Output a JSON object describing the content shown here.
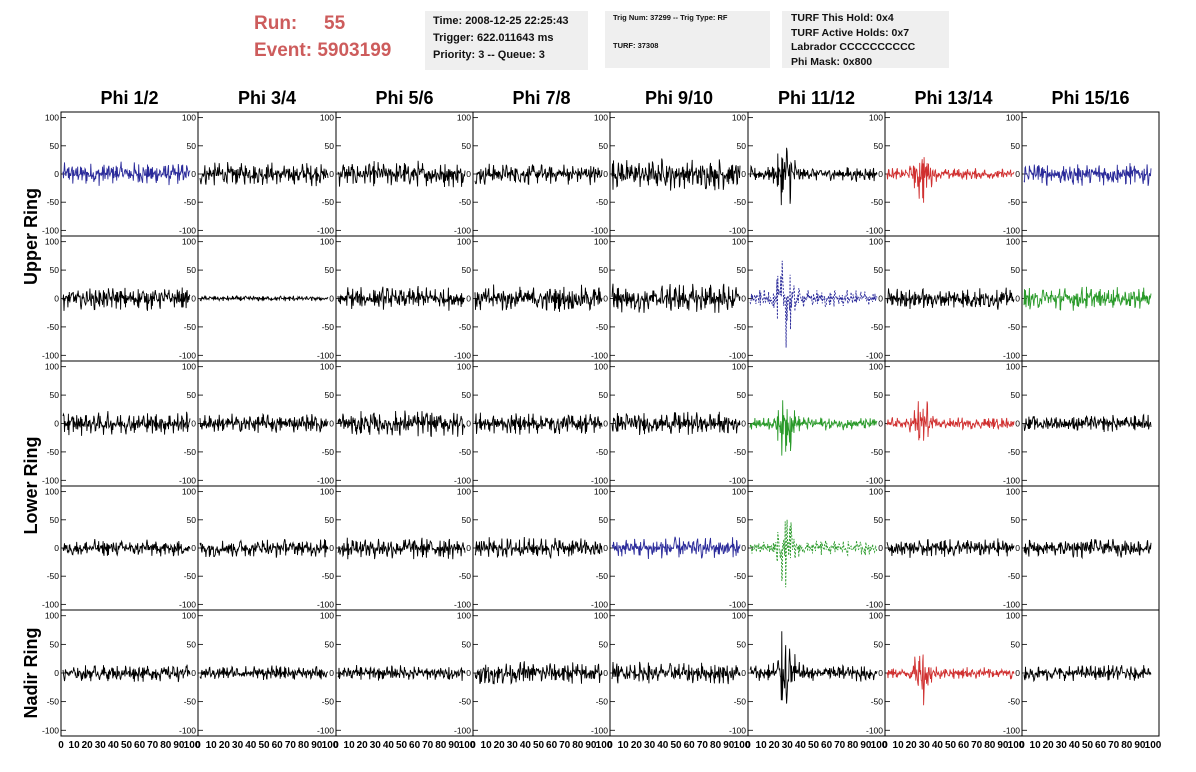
{
  "header": {
    "run_label": "Run:",
    "run_value": "55",
    "event_label": "Event:",
    "event_value": "5903199",
    "run_color": "#cd5c5c"
  },
  "time_box": {
    "time": "Time: 2008-12-25 22:25:43",
    "trigger": "Trigger: 622.011643 ms",
    "priority": "Priority: 3 -- Queue: 3"
  },
  "trig_box": {
    "trig": "Trig Num: 37299 -- Trig Type: RF",
    "turf": "TURF: 37308"
  },
  "turf_box": {
    "hold": "TURF This Hold: 0x4",
    "active": "TURF Active Holds: 0x7",
    "labrador": "Labrador CCCCCCCCCC",
    "phimask": "Phi Mask: 0x800"
  },
  "chart_data": {
    "type": "line",
    "columns": [
      "Phi 1/2",
      "Phi 3/4",
      "Phi 5/6",
      "Phi 7/8",
      "Phi 9/10",
      "Phi 11/12",
      "Phi 13/14",
      "Phi 15/16"
    ],
    "row_groups": [
      "Upper Ring",
      "Lower Ring",
      "Nadir Ring"
    ],
    "rows": 5,
    "ylim": [
      -110,
      110
    ],
    "y_ticks": [
      100,
      50,
      0,
      -50,
      -100
    ],
    "y_tick_labels": [
      "100",
      "50",
      "0",
      "-50",
      "-100"
    ],
    "xlim": [
      0,
      100
    ],
    "x_tick_labels": [
      "0",
      "10",
      "20",
      "30",
      "40",
      "50",
      "60",
      "70",
      "80",
      "90",
      "100"
    ],
    "colors": {
      "blue": "#2a2a9a",
      "red": "#d03030",
      "green": "#2a9a2a",
      "black": "#000000"
    },
    "panels": [
      [
        {
          "color": "blue",
          "amp": 22
        },
        {
          "color": "black",
          "amp": 22
        },
        {
          "color": "black",
          "amp": 25
        },
        {
          "color": "black",
          "amp": 20
        },
        {
          "color": "black",
          "amp": 30
        },
        {
          "color": "black",
          "amp": 40,
          "burst": true
        },
        {
          "color": "red",
          "amp": 32,
          "burst": true
        },
        {
          "color": "blue",
          "amp": 22
        }
      ],
      [
        {
          "color": "black",
          "amp": 22
        },
        {
          "color": "black",
          "amp": 5
        },
        {
          "color": "black",
          "amp": 22
        },
        {
          "color": "black",
          "amp": 25
        },
        {
          "color": "black",
          "amp": 28
        },
        {
          "color": "blue",
          "amp": 45,
          "burst": true,
          "dashed": true
        },
        {
          "color": "black",
          "amp": 20
        },
        {
          "color": "green",
          "amp": 22
        }
      ],
      [
        {
          "color": "black",
          "amp": 22
        },
        {
          "color": "black",
          "amp": 18
        },
        {
          "color": "black",
          "amp": 25
        },
        {
          "color": "black",
          "amp": 20
        },
        {
          "color": "black",
          "amp": 22
        },
        {
          "color": "green",
          "amp": 35,
          "burst": true
        },
        {
          "color": "red",
          "amp": 32,
          "burst": true
        },
        {
          "color": "black",
          "amp": 16
        }
      ],
      [
        {
          "color": "black",
          "amp": 16
        },
        {
          "color": "black",
          "amp": 18
        },
        {
          "color": "black",
          "amp": 22
        },
        {
          "color": "black",
          "amp": 20
        },
        {
          "color": "blue",
          "amp": 20
        },
        {
          "color": "green",
          "amp": 40,
          "burst": true,
          "dashed": true
        },
        {
          "color": "black",
          "amp": 18
        },
        {
          "color": "black",
          "amp": 18
        }
      ],
      [
        {
          "color": "black",
          "amp": 16
        },
        {
          "color": "black",
          "amp": 14
        },
        {
          "color": "black",
          "amp": 14
        },
        {
          "color": "black",
          "amp": 22
        },
        {
          "color": "black",
          "amp": 20
        },
        {
          "color": "black",
          "amp": 45,
          "burst": true
        },
        {
          "color": "red",
          "amp": 32,
          "burst": true
        },
        {
          "color": "black",
          "amp": 14
        }
      ]
    ]
  }
}
